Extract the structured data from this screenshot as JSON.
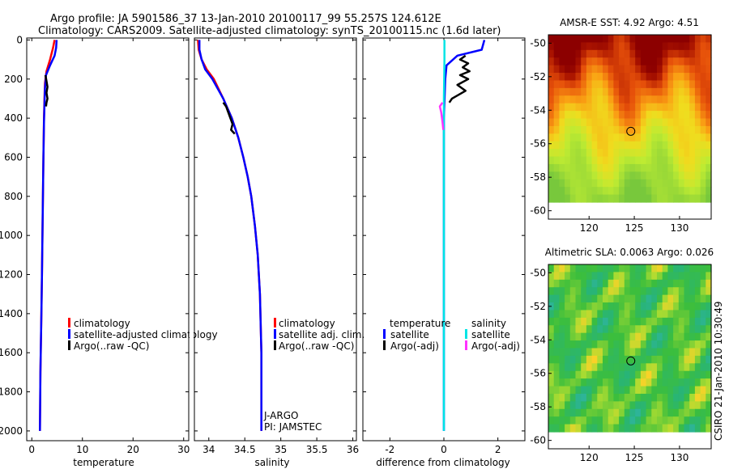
{
  "title": {
    "line1": "Argo profile: JA 5901586_37 13-Jan-2010 20100117_99 55.257S 124.612E",
    "line2": "Climatology: CARS2009. Satellite-adjusted climatology: synTS_20100115.nc (1.6d later)"
  },
  "side_label": "CSIRO 21-Jan-2010 10:30:49",
  "colors": {
    "climatology": "#ff0000",
    "satellite": "#0000ff",
    "argo": "#000000",
    "sal_satellite": "#00e5e5",
    "sal_argo": "#ff33ff"
  },
  "chart_data": [
    {
      "type": "line",
      "id": "temperature",
      "xlabel": "temperature",
      "xlim": [
        -1,
        31
      ],
      "ylim": [
        2050,
        -10
      ],
      "xticks": [
        0,
        10,
        20,
        30
      ],
      "yticks": [
        0,
        200,
        400,
        600,
        800,
        1000,
        1200,
        1400,
        1600,
        1800,
        2000
      ],
      "legend": [
        "climatology",
        "satellite-adjusted climatology",
        "Argo(..raw -QC)"
      ],
      "series": [
        {
          "name": "climatology",
          "color": "#ff0000",
          "x": [
            4.5,
            4.2,
            3.6,
            2.9,
            2.6,
            2.5,
            2.4,
            2.3,
            2.2,
            2.1,
            2.0,
            1.9,
            1.7,
            1.6
          ],
          "y": [
            0,
            40,
            100,
            160,
            220,
            300,
            400,
            600,
            800,
            1000,
            1200,
            1400,
            1700,
            2000
          ]
        },
        {
          "name": "satellite",
          "color": "#0000ff",
          "x": [
            4.9,
            4.8,
            4.5,
            3.6,
            2.8,
            2.6,
            2.5,
            2.4,
            2.3,
            2.2,
            2.1,
            2.0,
            1.9,
            1.7,
            1.6
          ],
          "y": [
            0,
            40,
            80,
            130,
            180,
            250,
            330,
            420,
            600,
            800,
            1000,
            1200,
            1400,
            1700,
            2000
          ]
        },
        {
          "name": "argo",
          "color": "#000000",
          "x": [
            2.7,
            2.9,
            3.1,
            2.9,
            3.1,
            2.9,
            2.8
          ],
          "y": [
            180,
            210,
            240,
            270,
            300,
            320,
            340
          ]
        }
      ]
    },
    {
      "type": "line",
      "id": "salinity",
      "xlabel": "salinity",
      "xlim": [
        33.8,
        36.05
      ],
      "ylim": [
        2050,
        -10
      ],
      "xticks": [
        34,
        34.5,
        35,
        35.5,
        36
      ],
      "legend": [
        "climatology",
        "satellite adj. clim.",
        "Argo(..raw -QC)"
      ],
      "annotations": [
        "J-ARGO",
        "PI: JAMSTEC"
      ],
      "series": [
        {
          "name": "climatology",
          "color": "#ff0000",
          "x": [
            33.85,
            33.86,
            33.9,
            33.97,
            34.07,
            34.2,
            34.32,
            34.41,
            34.48,
            34.54,
            34.59,
            34.64,
            34.68,
            34.71,
            34.73,
            34.73
          ],
          "y": [
            0,
            50,
            100,
            150,
            200,
            300,
            400,
            500,
            600,
            700,
            800,
            950,
            1100,
            1300,
            1600,
            2000
          ]
        },
        {
          "name": "satellite",
          "color": "#0000ff",
          "x": [
            33.87,
            33.87,
            33.9,
            33.95,
            34.05,
            34.2,
            34.32,
            34.41,
            34.48,
            34.54,
            34.59,
            34.64,
            34.68,
            34.71,
            34.73,
            34.73
          ],
          "y": [
            0,
            50,
            100,
            150,
            200,
            300,
            400,
            500,
            600,
            700,
            800,
            950,
            1100,
            1300,
            1600,
            2000
          ]
        },
        {
          "name": "argo",
          "color": "#000000",
          "x": [
            34.2,
            34.24,
            34.27,
            34.3,
            34.33,
            34.31,
            34.36
          ],
          "y": [
            320,
            340,
            370,
            400,
            430,
            460,
            480
          ]
        }
      ]
    },
    {
      "type": "line",
      "id": "difference",
      "xlabel": "difference from climatology",
      "xlim": [
        -3.0,
        3.0
      ],
      "ylim": [
        2050,
        -10
      ],
      "xticks": [
        -2,
        0,
        2
      ],
      "legend_groups": [
        {
          "title": "temperature",
          "items": [
            "satellite",
            "Argo(-adj)"
          ]
        },
        {
          "title": "salinity",
          "items": [
            "satellite",
            "Argo(-adj)"
          ]
        }
      ],
      "series": [
        {
          "name": "temperature satellite",
          "color": "#0000ff",
          "x": [
            1.5,
            1.4,
            0.5,
            0.1,
            0.05,
            0.0,
            0.0,
            0.0,
            0.0
          ],
          "y": [
            0,
            50,
            80,
            130,
            200,
            400,
            800,
            1400,
            2000
          ]
        },
        {
          "name": "temperature Argo(-adj)",
          "color": "#000000",
          "x": [
            0.8,
            0.6,
            0.9,
            0.7,
            0.95,
            0.6,
            0.9,
            0.5,
            0.8,
            0.3,
            0.2
          ],
          "y": [
            80,
            100,
            120,
            140,
            160,
            180,
            200,
            230,
            260,
            300,
            320
          ]
        },
        {
          "name": "salinity satellite",
          "color": "#00e5e5",
          "x": [
            0.02,
            0.02,
            0.0,
            0.0,
            0.0,
            0.0
          ],
          "y": [
            0,
            100,
            300,
            800,
            1400,
            2000
          ]
        },
        {
          "name": "salinity Argo(-adj)",
          "color": "#ff33ff",
          "x": [
            -0.05,
            -0.15,
            -0.1,
            -0.05,
            -0.02
          ],
          "y": [
            320,
            340,
            370,
            420,
            460
          ]
        }
      ]
    },
    {
      "type": "heatmap",
      "id": "sst_map",
      "title": "AMSR-E SST: 4.92 Argo: 4.51",
      "xticks": [
        120,
        125,
        130
      ],
      "yticks": [
        -50,
        -52,
        -54,
        -56,
        -58,
        -60
      ],
      "xlim": [
        115.5,
        133.5
      ],
      "ylim": [
        -60.5,
        -49.5
      ],
      "marker": {
        "lon": 124.612,
        "lat": -55.257
      }
    },
    {
      "type": "heatmap",
      "id": "sla_map",
      "title": "Altimetric SLA: 0.0063 Argo: 0.026",
      "xticks": [
        120,
        125,
        130
      ],
      "yticks": [
        -50,
        -52,
        -54,
        -56,
        -58,
        -60
      ],
      "xlim": [
        115.5,
        133.5
      ],
      "ylim": [
        -60.5,
        -49.5
      ],
      "marker": {
        "lon": 124.612,
        "lat": -55.257
      }
    }
  ]
}
